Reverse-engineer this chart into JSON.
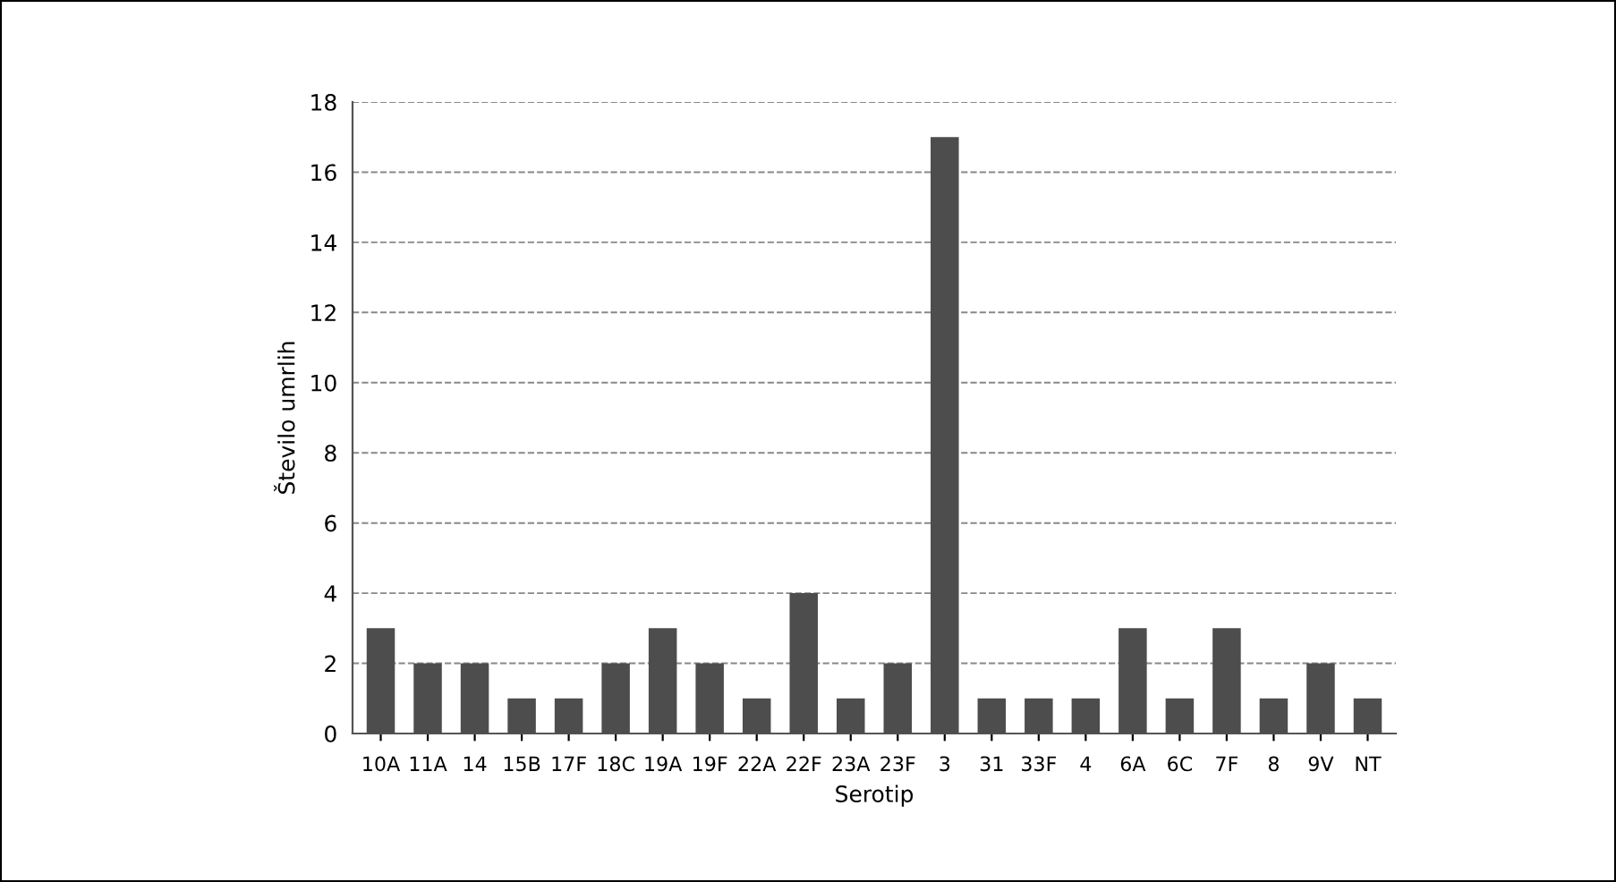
{
  "chart_data": {
    "type": "bar",
    "xlabel": "Serotip",
    "ylabel": "Število umrlih",
    "categories": [
      "10A",
      "11A",
      "14",
      "15B",
      "17F",
      "18C",
      "19A",
      "19F",
      "22A",
      "22F",
      "23A",
      "23F",
      "3",
      "31",
      "33F",
      "4",
      "6A",
      "6C",
      "7F",
      "8",
      "9V",
      "NT"
    ],
    "values": [
      3,
      2,
      2,
      1,
      1,
      2,
      3,
      2,
      1,
      4,
      1,
      2,
      17,
      1,
      1,
      1,
      3,
      1,
      3,
      1,
      2,
      1
    ],
    "color": "#4d4d4d",
    "ylim": [
      0,
      18
    ],
    "yticks": [
      0,
      2,
      4,
      6,
      8,
      10,
      12,
      14,
      16,
      18
    ],
    "grid": "y"
  }
}
